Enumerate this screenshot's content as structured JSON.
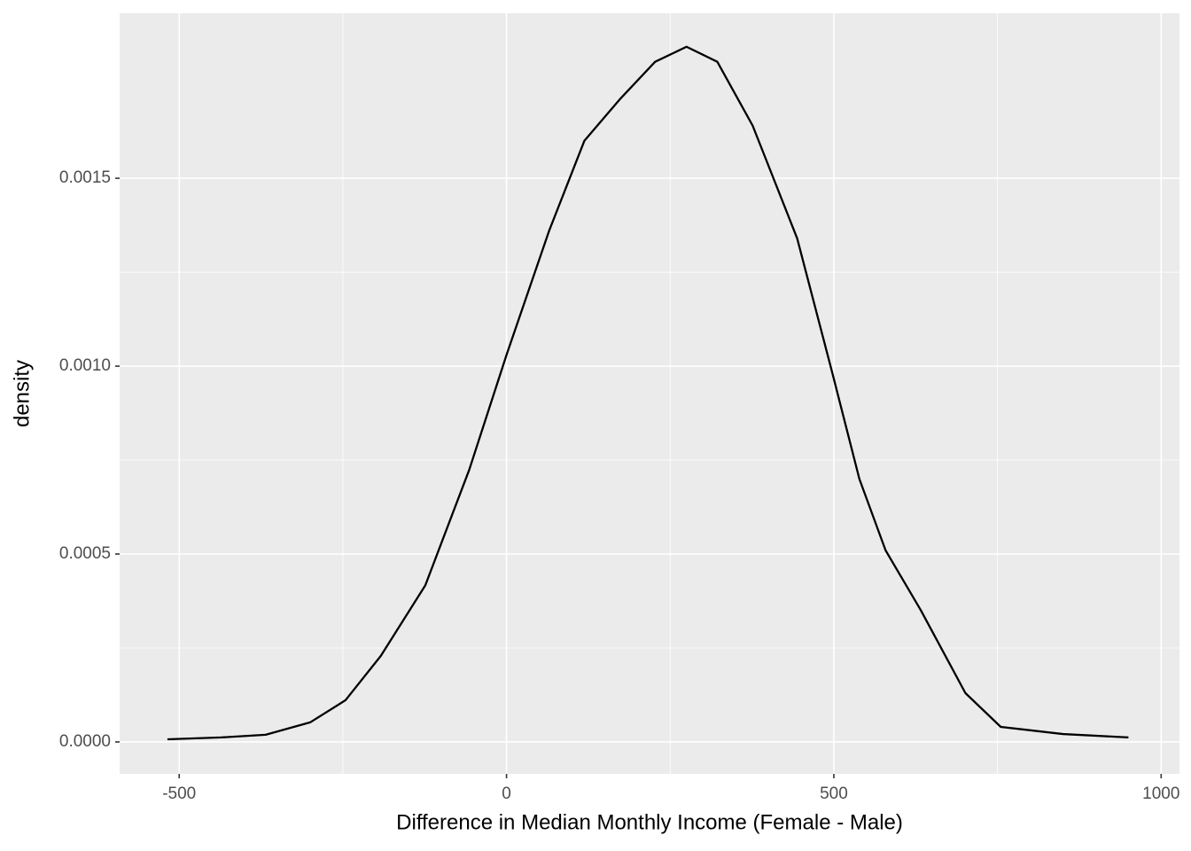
{
  "chart_data": {
    "type": "line",
    "x_label": "Difference in Median Monthly Income (Female - Male)",
    "y_label": "density",
    "x": [
      -518,
      -436,
      -368,
      -300,
      -246,
      -192,
      -124,
      -57,
      0,
      65,
      119,
      173,
      227,
      275,
      322,
      376,
      444,
      498,
      539,
      579,
      633,
      701,
      755,
      850,
      950
    ],
    "series": [
      {
        "color": "#000000",
        "values": [
          7e-06,
          1.2e-05,
          1.9e-05,
          5.2e-05,
          0.000111,
          0.000229,
          0.000417,
          0.000724,
          0.00103,
          0.00136,
          0.0016,
          0.00171,
          0.00181,
          0.00185,
          0.00181,
          0.00164,
          0.00134,
          0.00098,
          0.0007,
          0.00051,
          0.00035,
          0.00013,
          4e-05,
          2.1e-05,
          1.2e-05
        ]
      }
    ],
    "xlim": [
      -591,
      1028
    ],
    "ylim": [
      -8.5e-05,
      0.001939
    ],
    "xticks": [
      -500,
      0,
      500,
      1000
    ],
    "yticks": [
      {
        "value": 0,
        "label": "0.0000"
      },
      0.0005,
      {
        "value": 0.001,
        "label": "0.0010"
      },
      0.0015
    ],
    "grid": true
  }
}
